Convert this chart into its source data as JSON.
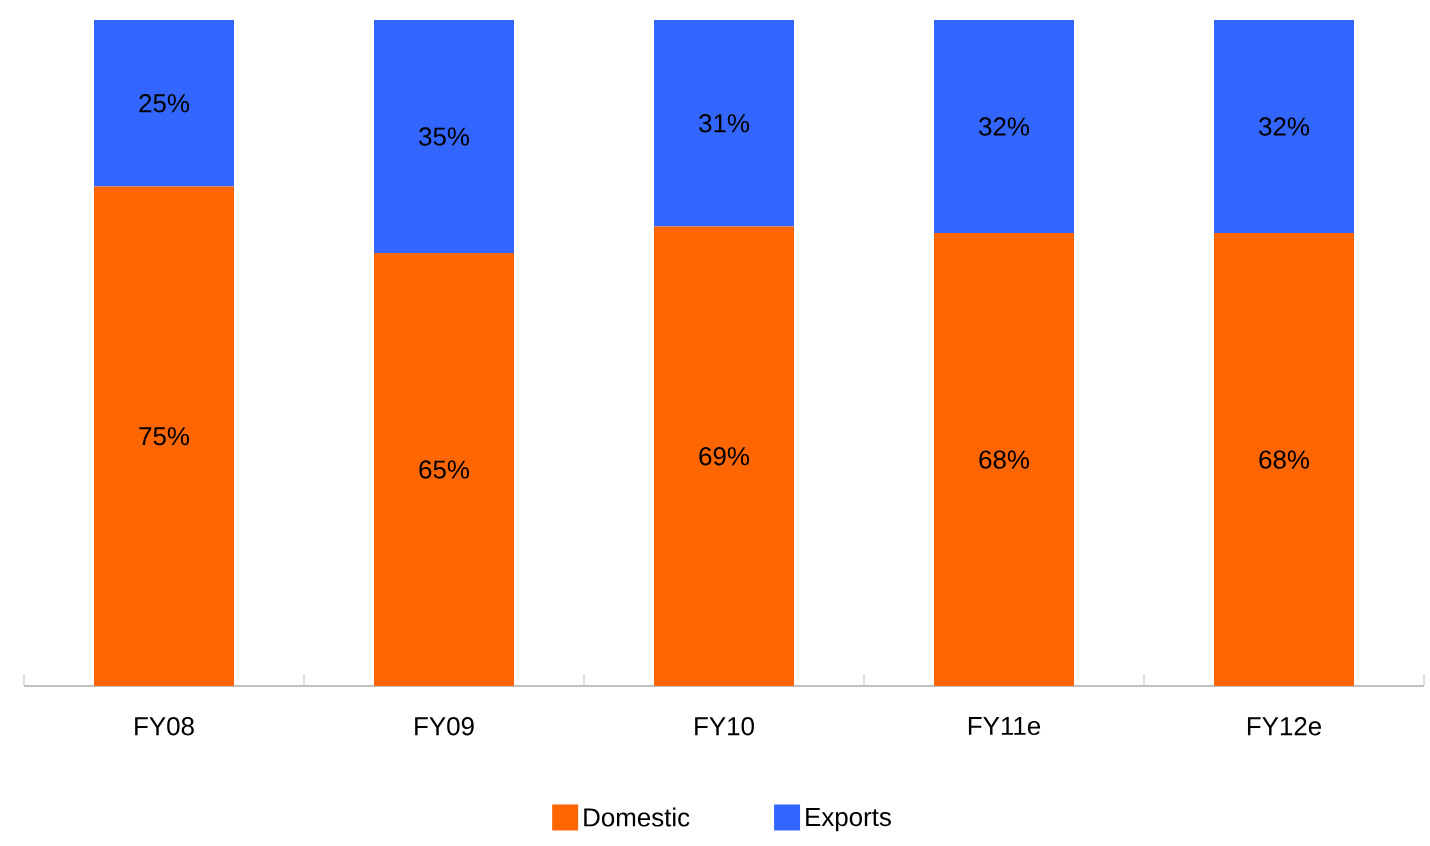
{
  "chart_data": {
    "type": "bar",
    "stacked": true,
    "categories": [
      "FY08",
      "FY09",
      "FY10",
      "FY11e",
      "FY12e"
    ],
    "series": [
      {
        "name": "Domestic",
        "color": "#ff6600",
        "values": [
          75,
          65,
          69,
          68,
          68
        ],
        "value_labels": [
          "75%",
          "65%",
          "69%",
          "68%",
          "68%"
        ]
      },
      {
        "name": "Exports",
        "color": "#3366ff",
        "values": [
          25,
          35,
          31,
          32,
          32
        ],
        "value_labels": [
          "25%",
          "35%",
          "31%",
          "32%",
          "32%"
        ]
      }
    ],
    "legend": "bottom"
  }
}
